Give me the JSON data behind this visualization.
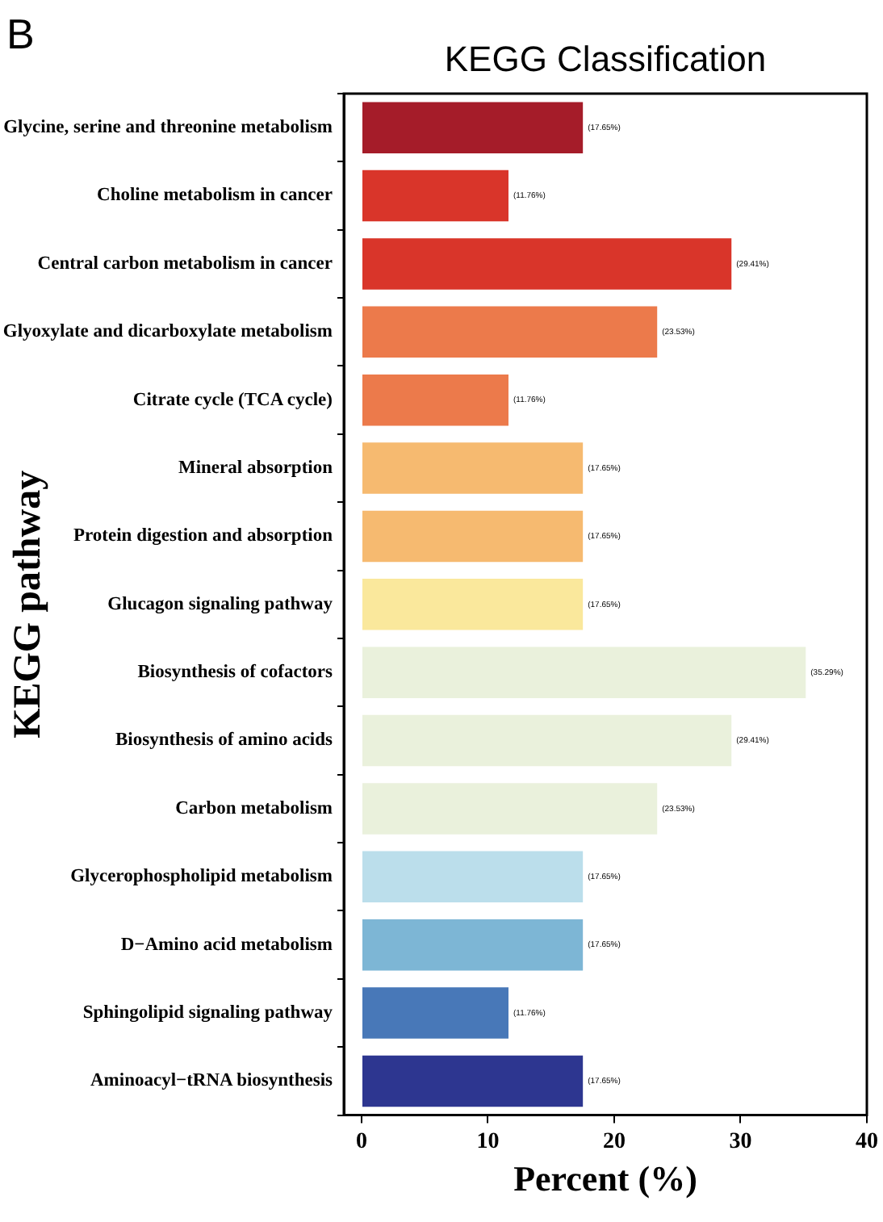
{
  "chart_data": {
    "type": "bar",
    "orientation": "horizontal",
    "title": "KEGG Classification",
    "xlabel": "Percent (%)",
    "ylabel": "KEGG pathway",
    "annotations": [
      "B"
    ],
    "categories": [
      "Glycine, serine and threonine metabolism",
      "Choline metabolism in cancer",
      "Central carbon metabolism in cancer",
      "Glyoxylate and dicarboxylate metabolism",
      "Citrate cycle (TCA cycle)",
      "Mineral absorption",
      "Protein digestion and absorption",
      "Glucagon signaling pathway",
      "Biosynthesis of cofactors",
      "Biosynthesis of amino acids",
      "Carbon metabolism",
      "Glycerophospholipid metabolism",
      "D−Amino acid metabolism",
      "Sphingolipid signaling pathway",
      "Aminoacyl−tRNA biosynthesis"
    ],
    "values": [
      17.65,
      11.76,
      29.41,
      23.53,
      11.76,
      17.65,
      17.65,
      17.65,
      35.29,
      29.41,
      23.53,
      17.65,
      17.65,
      11.76,
      17.65
    ],
    "value_labels": [
      "(17.65%)",
      "(11.76%)",
      "(29.41%)",
      "(23.53%)",
      "(11.76%)",
      "(17.65%)",
      "(17.65%)",
      "(17.65%)",
      "(35.29%)",
      "(29.41%)",
      "(23.53%)",
      "(17.65%)",
      "(17.65%)",
      "(11.76%)",
      "(17.65%)"
    ],
    "colors": [
      "#a51c29",
      "#d9352a",
      "#d9352a",
      "#ec7a4b",
      "#ec7a4b",
      "#f6ba70",
      "#f6ba70",
      "#fae89c",
      "#eaf1dc",
      "#eaf1dc",
      "#eaf1dc",
      "#bbdeeb",
      "#7db6d5",
      "#4878b8",
      "#2d3690"
    ],
    "xlim": [
      -1.4,
      40
    ],
    "xticks": [
      0,
      10,
      20,
      30,
      40
    ],
    "grid": false,
    "legend": false
  }
}
